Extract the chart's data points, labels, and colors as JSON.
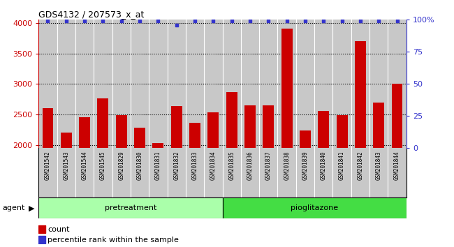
{
  "title": "GDS4132 / 207573_x_at",
  "samples": [
    "GSM201542",
    "GSM201543",
    "GSM201544",
    "GSM201545",
    "GSM201829",
    "GSM201830",
    "GSM201831",
    "GSM201832",
    "GSM201833",
    "GSM201834",
    "GSM201835",
    "GSM201836",
    "GSM201837",
    "GSM201838",
    "GSM201839",
    "GSM201840",
    "GSM201841",
    "GSM201842",
    "GSM201843",
    "GSM201844"
  ],
  "counts": [
    2600,
    2210,
    2460,
    2760,
    2490,
    2290,
    2030,
    2640,
    2370,
    2540,
    2870,
    2650,
    2650,
    3900,
    2240,
    2560,
    2490,
    3700,
    2700,
    3000
  ],
  "percentile": [
    99,
    99,
    99,
    99,
    99,
    99,
    99,
    96,
    99,
    99,
    99,
    99,
    99,
    99,
    99,
    99,
    99,
    99,
    99,
    99
  ],
  "group1_label": "pretreatment",
  "group2_label": "pioglitazone",
  "group1_count": 10,
  "group2_count": 10,
  "bar_color": "#cc0000",
  "dot_color": "#3333cc",
  "ylim_left": [
    1950,
    4050
  ],
  "ylim_right": [
    0,
    100
  ],
  "yticks_left": [
    2000,
    2500,
    3000,
    3500,
    4000
  ],
  "yticks_right": [
    0,
    25,
    50,
    75,
    100
  ],
  "bg_color_plot": "#c8c8c8",
  "bg_color_xtick": "#c8c8c8",
  "bg_color_group1": "#aaffaa",
  "bg_color_group2": "#44dd44",
  "agent_label": "agent",
  "legend_count": "count",
  "legend_pct": "percentile rank within the sample",
  "grid_color": "black",
  "separator_color": "white"
}
